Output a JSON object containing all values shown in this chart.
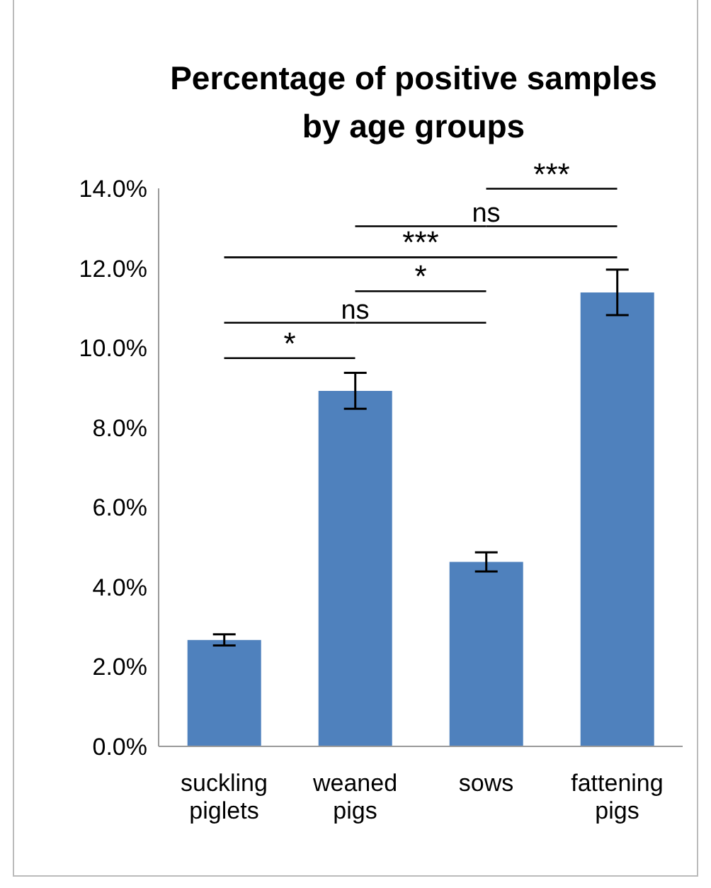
{
  "chart_data": {
    "type": "bar",
    "title": "Percentage of positive samples by age groups",
    "categories": [
      "suckling piglets",
      "weaned pigs",
      "sows",
      "fattening pigs"
    ],
    "values": [
      2.67,
      8.92,
      4.63,
      11.39
    ],
    "errors": [
      0.14,
      0.45,
      0.24,
      0.57
    ],
    "color": "#4f81bd",
    "ylim": [
      0,
      14
    ],
    "yticks": [
      {
        "value": 0,
        "label": "0.0%"
      },
      {
        "value": 2,
        "label": "2.0%"
      },
      {
        "value": 4,
        "label": "4.0%"
      },
      {
        "value": 6,
        "label": "6.0%"
      },
      {
        "value": 8,
        "label": "8.0%"
      },
      {
        "value": 10,
        "label": "10.0%"
      },
      {
        "value": 12,
        "label": "12.0%"
      },
      {
        "value": 14,
        "label": "14.0%"
      }
    ],
    "annotations": [
      "*",
      "ns",
      "*",
      "***",
      "ns",
      "***"
    ],
    "grid": false,
    "legend": false
  }
}
